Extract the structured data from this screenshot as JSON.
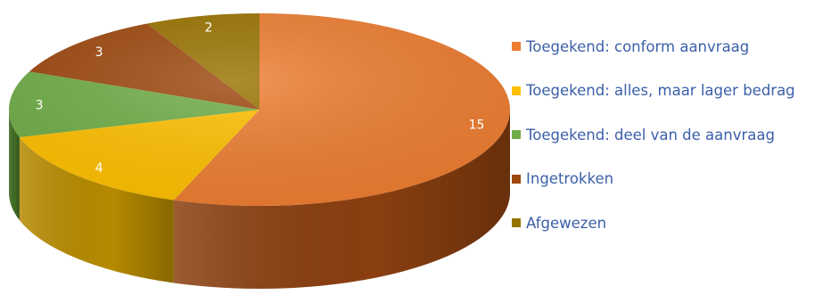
{
  "chart_data": {
    "type": "pie",
    "title": "",
    "slices": [
      {
        "label": "Toegekend: conform aanvraag",
        "value": 15,
        "color": "#ed7d31",
        "side_color": "#8a3f10"
      },
      {
        "label": "Toegekend: alles, maar lager bedrag",
        "value": 4,
        "color": "#ffc000",
        "side_color": "#b58a00"
      },
      {
        "label": "Toegekend: deel van de aanvraag",
        "value": 3,
        "color": "#70ad47",
        "side_color": "#3f6c22"
      },
      {
        "label": "Ingetrokken",
        "value": 3,
        "color": "#9e480e",
        "side_color": "#5c2606"
      },
      {
        "label": "Afgewezen",
        "value": 2,
        "color": "#997300",
        "side_color": "#5a4300"
      }
    ],
    "legend_position": "right",
    "data_labels": true,
    "style": "3d"
  }
}
